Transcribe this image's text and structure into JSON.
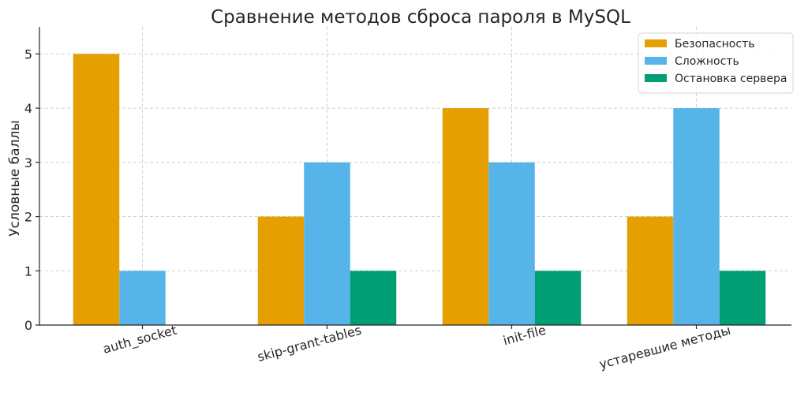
{
  "chart_data": {
    "type": "bar",
    "title": "Сравнение методов сброса пароля в MySQL",
    "xlabel": "",
    "ylabel": "Условные баллы",
    "categories": [
      "auth_socket",
      "skip-grant-tables",
      "init-file",
      "устаревшие методы"
    ],
    "series": [
      {
        "name": "Безопасность",
        "values": [
          5,
          2,
          4,
          2
        ],
        "color": "#E69F00"
      },
      {
        "name": "Сложность",
        "values": [
          1,
          3,
          3,
          4
        ],
        "color": "#56B4E9"
      },
      {
        "name": "Остановка сервера",
        "values": [
          0,
          1,
          1,
          1
        ],
        "color": "#009E73"
      }
    ],
    "ylim": [
      0,
      5.5
    ],
    "yticks": [
      0,
      1,
      2,
      3,
      4,
      5
    ],
    "grid": true,
    "legend_position": "top-right"
  }
}
